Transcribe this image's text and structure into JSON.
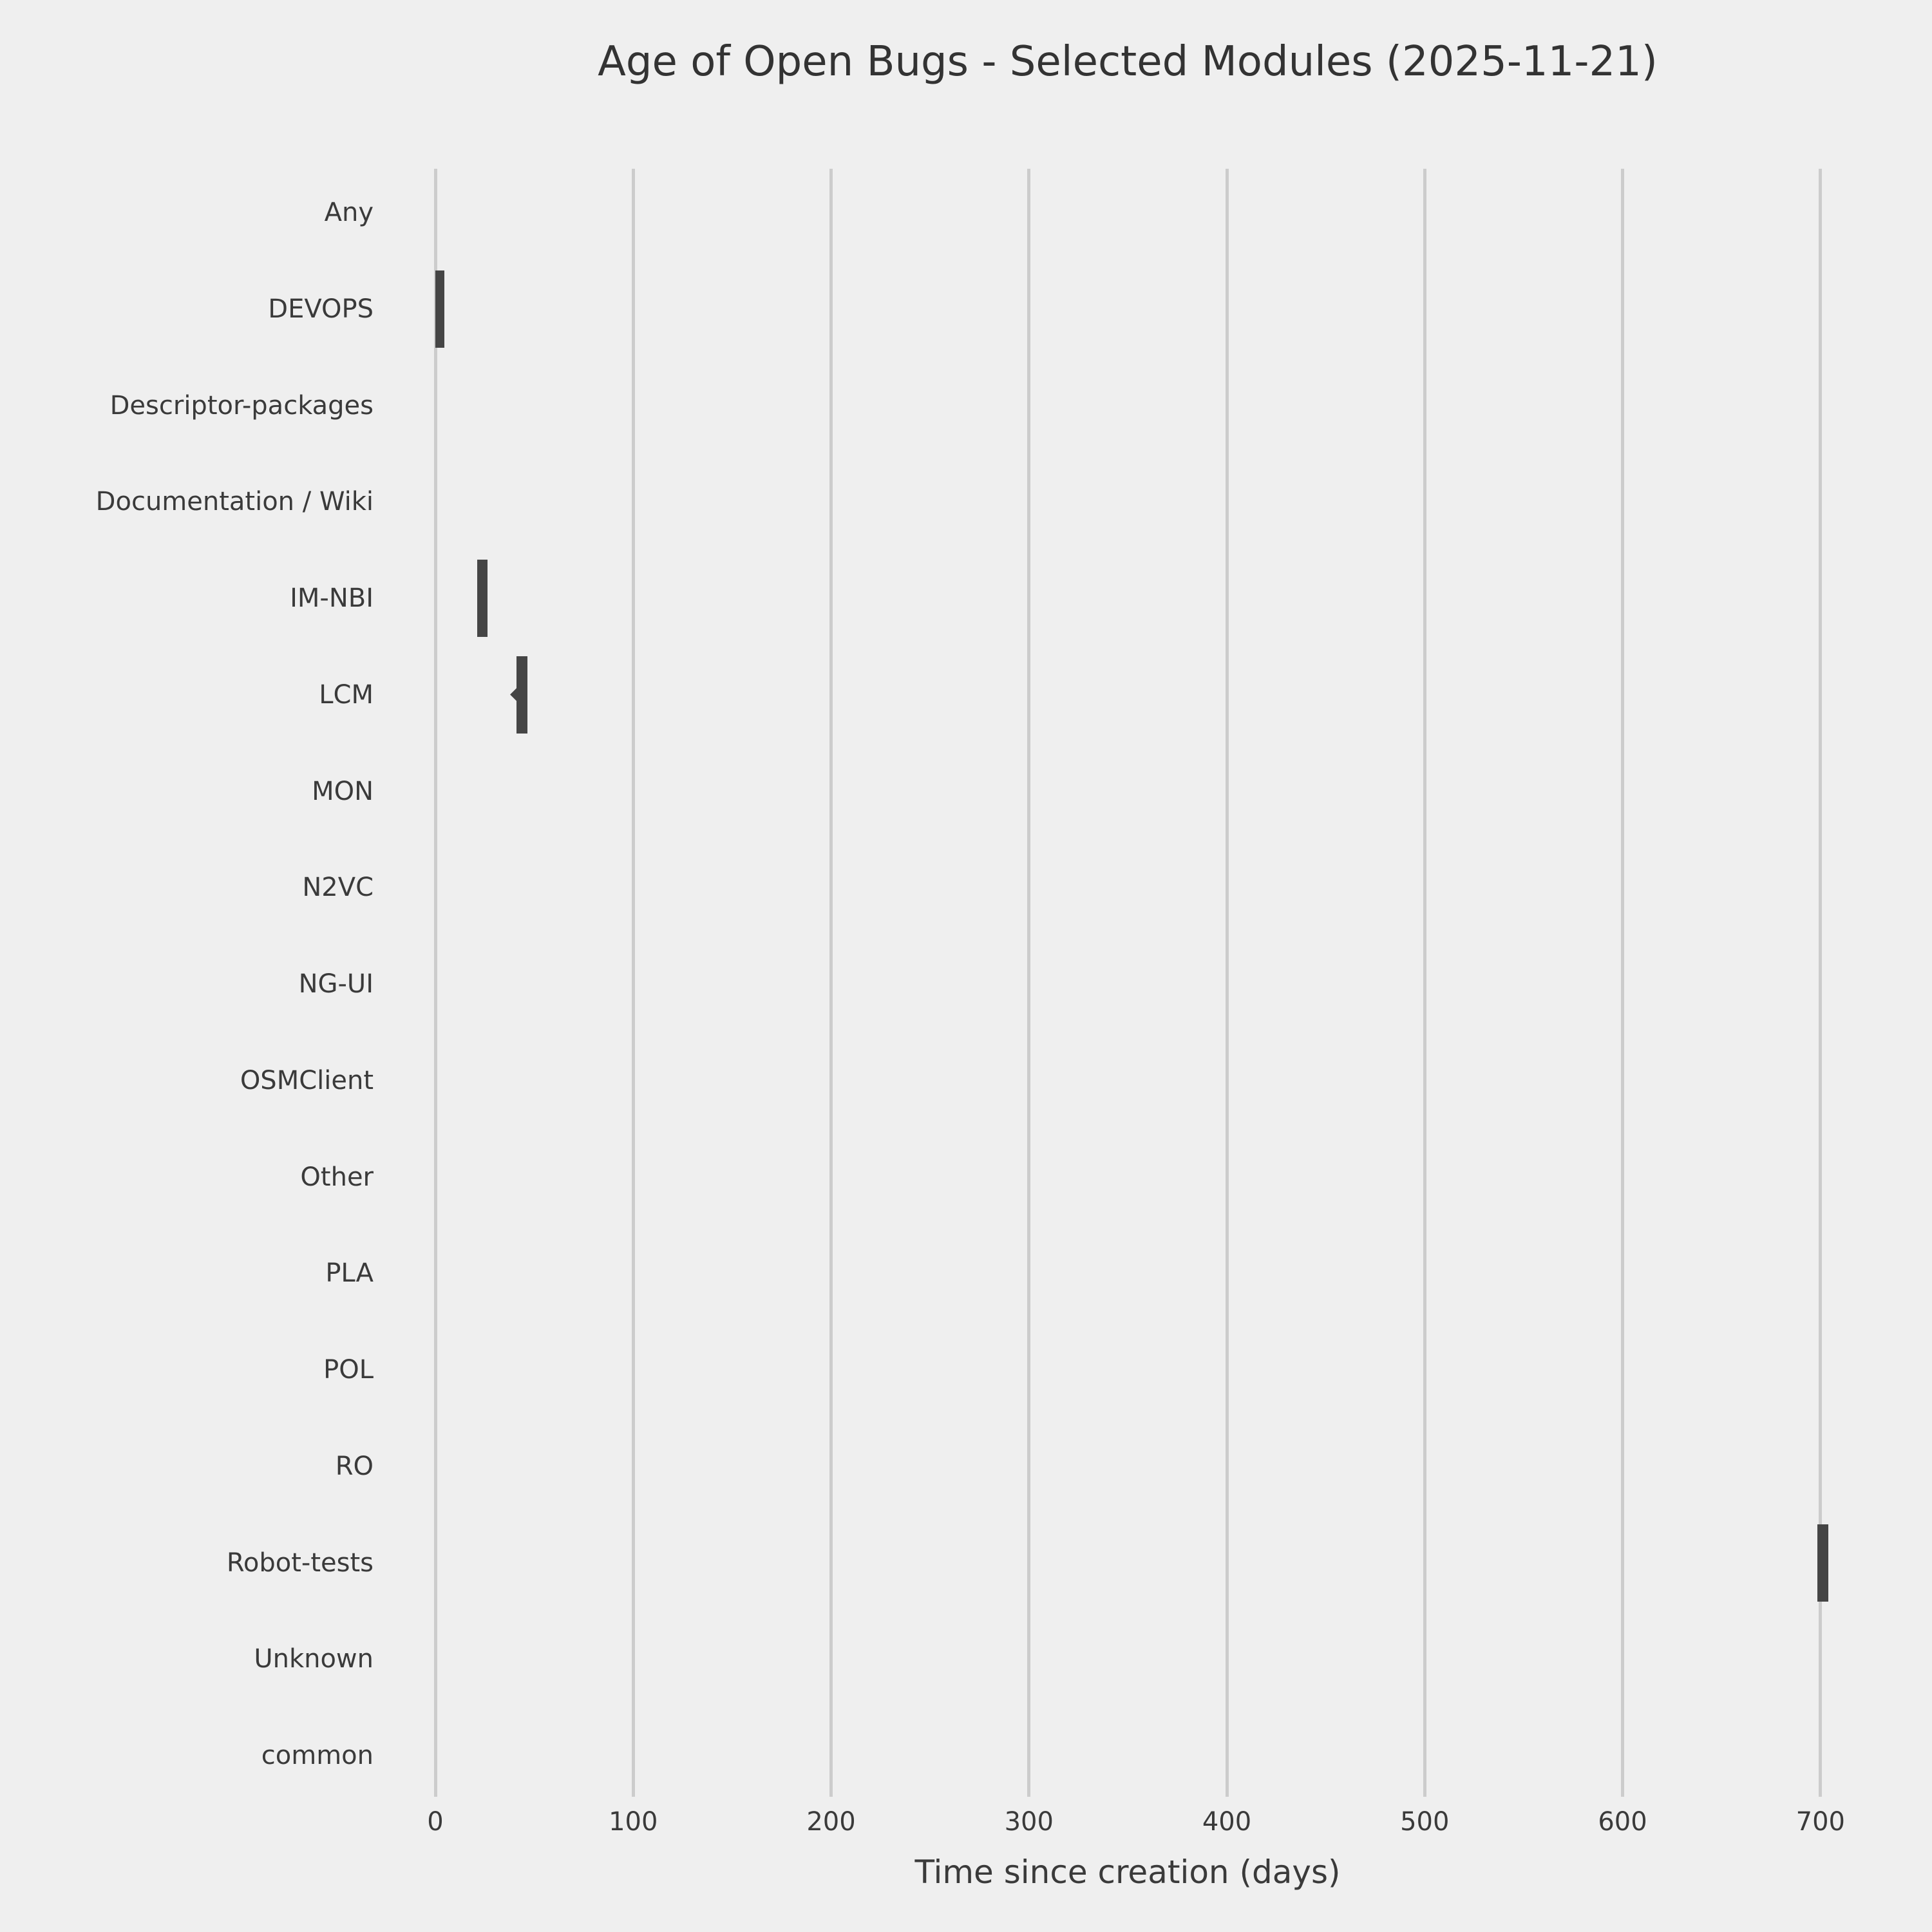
{
  "chart_data": {
    "type": "boxplot-horizontal",
    "title": "Age of Open Bugs - Selected Modules (2025-11-21)",
    "xlabel": "Time since creation (days)",
    "ylabel": "",
    "categories": [
      "Any",
      "DEVOPS",
      "Descriptor-packages",
      "Documentation / Wiki",
      "IM-NBI",
      "LCM",
      "MON",
      "N2VC",
      "NG-UI",
      "OSMClient",
      "Other",
      "PLA",
      "POL",
      "RO",
      "Robot-tests",
      "Unknown",
      "common"
    ],
    "x_ticks": [
      0,
      100,
      200,
      300,
      400,
      500,
      600,
      700
    ],
    "xlim": [
      -35,
      740
    ],
    "grid": "vertical-gridlines-only",
    "legend": "none",
    "boxes": [
      {
        "category": "DEVOPS",
        "q1": 0,
        "q3": 4.5
      },
      {
        "category": "IM-NBI",
        "q1": 21,
        "q3": 26.5
      },
      {
        "category": "LCM",
        "q1": 41,
        "q3": 46.5,
        "mean": 42
      },
      {
        "category": "Robot-tests",
        "q1": 698.5,
        "q3": 704
      }
    ],
    "colors": {
      "background": "#efefef",
      "gridline": "#cccccc",
      "box": "#454545",
      "text": "#3a3a3a",
      "title_text": "#333333"
    }
  }
}
